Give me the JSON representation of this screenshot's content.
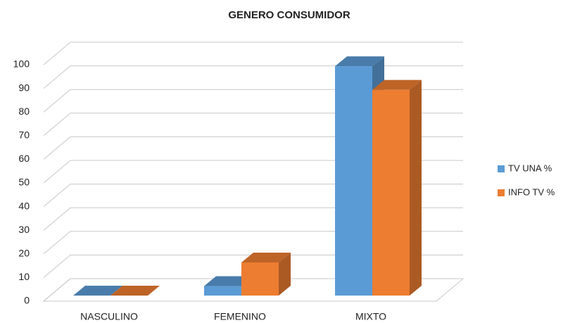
{
  "chart_data": {
    "type": "bar",
    "title": "GENERO  CONSUMIDOR",
    "categories": [
      "NASCULINO",
      "FEMENINO",
      "MIXTO"
    ],
    "series": [
      {
        "name": "TV UNA %",
        "color": "#5b9bd5",
        "values": [
          0,
          4,
          97
        ]
      },
      {
        "name": "INFO TV %",
        "color": "#ed7d31",
        "values": [
          0,
          14,
          87
        ]
      }
    ],
    "ylim": [
      0,
      100
    ],
    "yticks": [
      0,
      10,
      20,
      30,
      40,
      50,
      60,
      70,
      80,
      90,
      100
    ],
    "grid": true,
    "legend": "right"
  }
}
